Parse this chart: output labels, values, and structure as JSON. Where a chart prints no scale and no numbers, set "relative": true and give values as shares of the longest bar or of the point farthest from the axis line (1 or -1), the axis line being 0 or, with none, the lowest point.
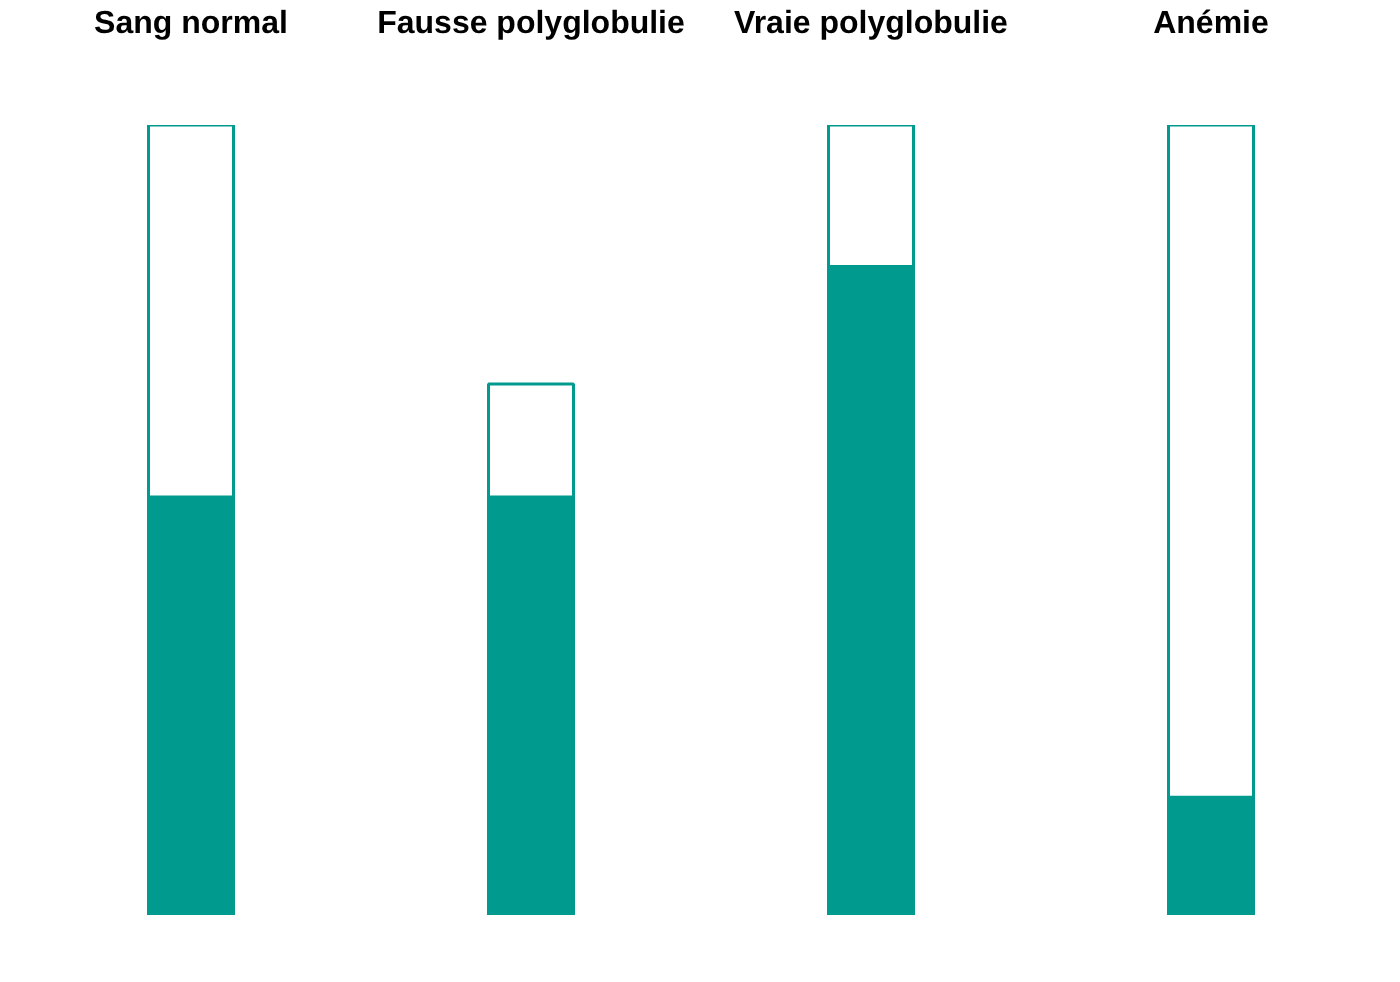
{
  "chart_data": {
    "type": "bar",
    "stacked": true,
    "relative": true,
    "categories": [
      "Sang normal",
      "Fausse polyglobulie",
      "Vraie polyglobulie",
      "Anémie"
    ],
    "series": [
      {
        "color": "#009a8f",
        "values": [
          0.529,
          0.529,
          0.821,
          0.149
        ]
      },
      {
        "color": "#ffffff",
        "values": [
          0.471,
          0.143,
          0.179,
          0.851
        ]
      }
    ],
    "grid": false
  }
}
